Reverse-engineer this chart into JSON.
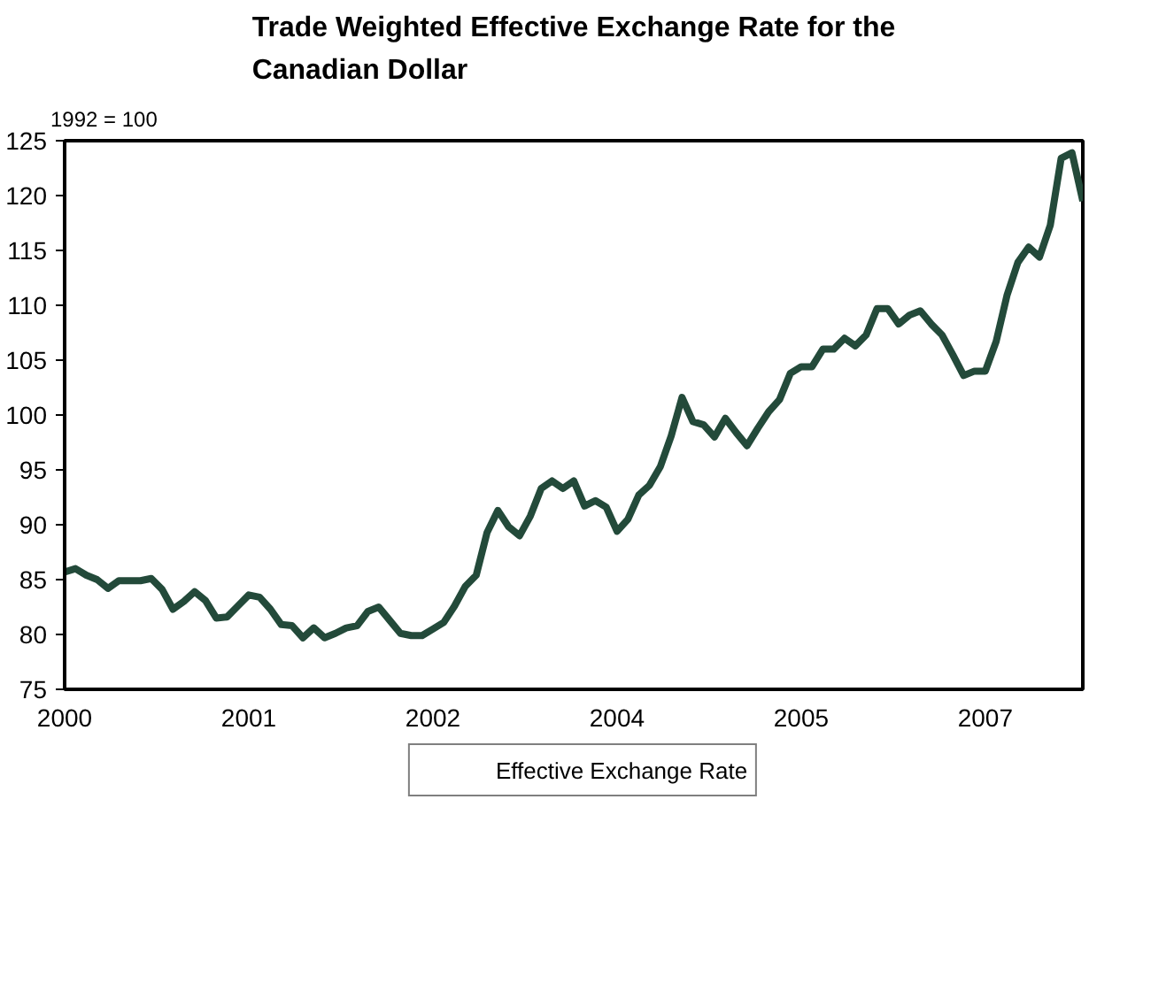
{
  "chart_data": {
    "type": "line",
    "title": "Trade Weighted Effective Exchange Rate for the\nCanadian Dollar",
    "ylabel": "1992 = 100",
    "categories": [
      "2000",
      null,
      null,
      null,
      null,
      null,
      null,
      null,
      null,
      null,
      null,
      null,
      null,
      null,
      null,
      null,
      null,
      "2001",
      null,
      null,
      null,
      null,
      null,
      null,
      null,
      null,
      null,
      null,
      null,
      null,
      null,
      null,
      null,
      null,
      "2002",
      null,
      null,
      null,
      null,
      null,
      null,
      null,
      null,
      null,
      null,
      null,
      null,
      null,
      null,
      null,
      null,
      "2004",
      null,
      null,
      null,
      null,
      null,
      null,
      null,
      null,
      null,
      null,
      null,
      null,
      null,
      null,
      null,
      null,
      "2005",
      null,
      null,
      null,
      null,
      null,
      null,
      null,
      null,
      null,
      null,
      null,
      null,
      null,
      null,
      null,
      null,
      "2007",
      null,
      null,
      null,
      null,
      null,
      null,
      null,
      null,
      null
    ],
    "series": [
      {
        "name": "Effective Exchange Rate",
        "color": "#234a3a",
        "values": [
          85.7,
          86.0,
          85.4,
          85.0,
          84.2,
          84.9,
          84.9,
          84.9,
          85.1,
          84.1,
          82.3,
          83.0,
          83.9,
          83.1,
          81.5,
          81.6,
          82.6,
          83.6,
          83.4,
          82.3,
          80.9,
          80.8,
          79.7,
          80.6,
          79.7,
          80.1,
          80.6,
          80.8,
          82.1,
          82.5,
          81.3,
          80.1,
          79.9,
          79.9,
          80.5,
          81.1,
          82.6,
          84.4,
          85.4,
          89.3,
          91.3,
          89.8,
          89.0,
          90.8,
          93.3,
          94.0,
          93.3,
          94.0,
          91.7,
          92.2,
          91.6,
          89.4,
          90.5,
          92.7,
          93.6,
          95.3,
          98.1,
          101.6,
          99.4,
          99.1,
          98.0,
          99.7,
          98.4,
          97.2,
          98.8,
          100.3,
          101.4,
          103.8,
          104.4,
          104.4,
          106.0,
          106.0,
          107.0,
          106.3,
          107.3,
          109.7,
          109.7,
          108.3,
          109.1,
          109.5,
          108.3,
          107.3,
          105.5,
          103.6,
          104.0,
          104.0,
          106.7,
          110.9,
          113.9,
          115.3,
          114.4,
          117.3,
          123.4,
          123.9,
          119.5
        ]
      }
    ],
    "ylim": [
      75,
      125
    ],
    "yticks": [
      75,
      80,
      85,
      90,
      95,
      100,
      105,
      110,
      115,
      120,
      125
    ],
    "grid": false,
    "legend": "bottom",
    "line_style": "solid",
    "marker": "none"
  }
}
